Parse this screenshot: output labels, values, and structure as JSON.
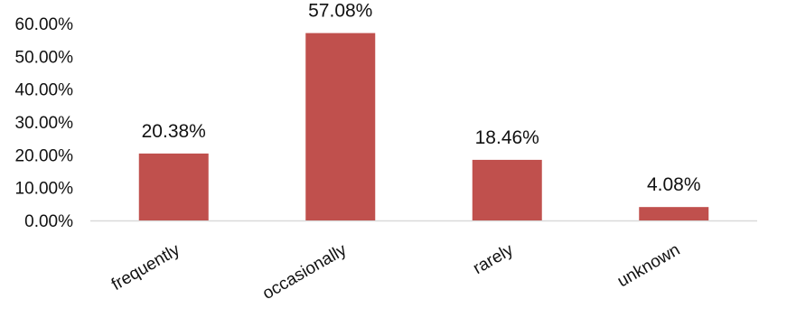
{
  "chart_data": {
    "type": "bar",
    "title": "",
    "xlabel": "",
    "ylabel": "",
    "categories": [
      "frequently",
      "occasionally",
      "rarely",
      "unknown"
    ],
    "values": [
      20.38,
      57.08,
      18.46,
      4.08
    ],
    "data_labels": [
      "20.38%",
      "57.08%",
      "18.46%",
      "4.08%"
    ],
    "ylim": [
      0,
      60
    ],
    "yticks": [
      0,
      10,
      20,
      30,
      40,
      50,
      60
    ],
    "ytick_labels": [
      "0.00%",
      "10.00%",
      "20.00%",
      "30.00%",
      "40.00%",
      "50.00%",
      "60.00%"
    ],
    "grid": false,
    "legend": "none",
    "bar_color": "#c0504d",
    "axis_color": "#d9d9d9"
  }
}
